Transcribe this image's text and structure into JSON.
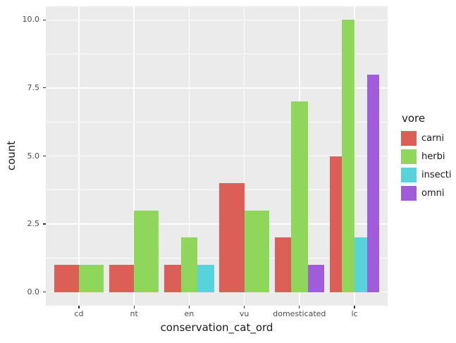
{
  "chart_data": {
    "type": "bar",
    "mode": "grouped-dodge",
    "title": "",
    "xlabel": "conservation_cat_ord",
    "ylabel": "count",
    "legend_title": "vore",
    "legend_position": "right",
    "categories": [
      "cd",
      "nt",
      "en",
      "vu",
      "domesticated",
      "lc"
    ],
    "series": [
      {
        "name": "carni",
        "color": "#DB5F57",
        "values": [
          1,
          1,
          1,
          4,
          2,
          5
        ]
      },
      {
        "name": "herbi",
        "color": "#8ED75A",
        "values": [
          1,
          3,
          2,
          3,
          7,
          10
        ]
      },
      {
        "name": "insecti",
        "color": "#57D3DB",
        "values": [
          null,
          null,
          1,
          null,
          null,
          2
        ]
      },
      {
        "name": "omni",
        "color": "#A15CDB",
        "values": [
          null,
          null,
          null,
          null,
          1,
          8
        ]
      }
    ],
    "ylim": [
      0,
      10
    ],
    "y_expansion": 0.5,
    "y_ticks": [
      0,
      2.5,
      5,
      7.5,
      10
    ],
    "y_tick_labels": [
      "0.0",
      "2.5",
      "5.0",
      "7.5",
      "10.0"
    ],
    "y_minor_ticks": [
      1.25,
      3.75,
      6.25,
      8.75
    ],
    "grid": true,
    "panel_bg": "#EBEBEB",
    "grid_color": "#FFFFFF",
    "tick_label_color": "#4D4D4D",
    "axis_title_color": "#1A1A1A"
  }
}
